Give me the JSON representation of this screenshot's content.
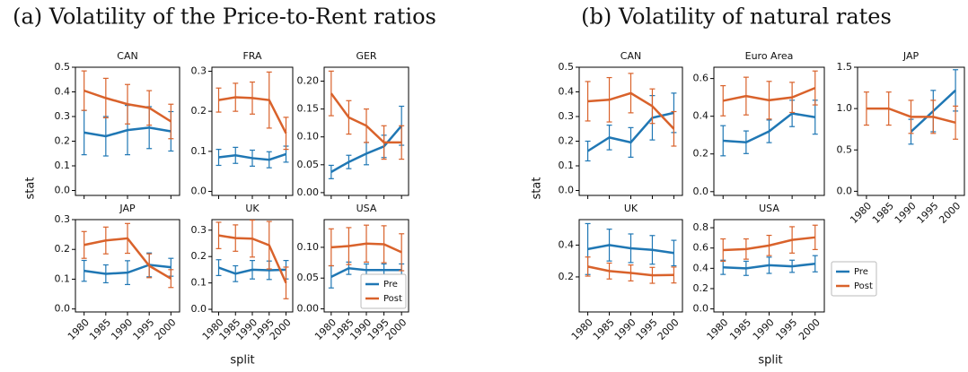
{
  "figures": [
    {
      "title": "(a) Volatility of the Price-to-Rent ratios",
      "y_label": "stat",
      "x_label": "split"
    },
    {
      "title": "(b) Volatility of natural rates",
      "y_label": "stat",
      "x_label": "split"
    }
  ],
  "chart_data": [
    {
      "type": "line",
      "title": "CAN",
      "x": [
        1980,
        1985,
        1990,
        1995,
        2000
      ],
      "xlim": [
        1978,
        2002
      ],
      "xticks": [
        1980,
        1985,
        1990,
        1995,
        2000
      ],
      "ylim": [
        -0.02,
        0.5
      ],
      "yticks": [
        {
          "value": 0,
          "label": "0.0"
        },
        0.1,
        0.2,
        0.3,
        0.4,
        0.5
      ],
      "series": [
        {
          "name": "Pre",
          "color": "#1f77b4",
          "values": [
            0.235,
            0.22,
            0.245,
            0.255,
            0.24
          ],
          "errors": [
            0.09,
            0.08,
            0.1,
            0.085,
            0.08
          ]
        },
        {
          "name": "Post",
          "color": "#d9622b",
          "values": [
            0.405,
            0.375,
            0.35,
            0.335,
            0.28
          ],
          "errors": [
            0.08,
            0.08,
            0.08,
            0.07,
            0.07
          ]
        }
      ]
    },
    {
      "type": "line",
      "title": "FRA",
      "x": [
        1980,
        1985,
        1990,
        1995,
        2000
      ],
      "xlim": [
        1978,
        2002
      ],
      "xticks": [
        1980,
        1985,
        1990,
        1995,
        2000
      ],
      "ylim": [
        -0.01,
        0.31
      ],
      "yticks": [
        {
          "value": 0,
          "label": "0.0"
        },
        0.1,
        0.2,
        0.3
      ],
      "series": [
        {
          "name": "Pre",
          "color": "#1f77b4",
          "values": [
            0.085,
            0.09,
            0.083,
            0.079,
            0.093
          ],
          "errors": [
            0.02,
            0.02,
            0.02,
            0.02,
            0.02
          ]
        },
        {
          "name": "Post",
          "color": "#d9622b",
          "values": [
            0.228,
            0.235,
            0.233,
            0.228,
            0.145
          ],
          "errors": [
            0.03,
            0.035,
            0.04,
            0.07,
            0.04
          ]
        }
      ]
    },
    {
      "type": "line",
      "title": "GER",
      "x": [
        1980,
        1985,
        1990,
        1995,
        2000
      ],
      "xlim": [
        1978,
        2002
      ],
      "xticks": [
        1980,
        1985,
        1990,
        1995,
        2000
      ],
      "ylim": [
        -0.005,
        0.225
      ],
      "yticks": [
        {
          "value": 0,
          "label": "0.00"
        },
        0.05,
        {
          "value": 0.1,
          "label": "0.10"
        },
        0.15,
        {
          "value": 0.2,
          "label": "0.20"
        }
      ],
      "series": [
        {
          "name": "Pre",
          "color": "#1f77b4",
          "values": [
            0.037,
            0.055,
            0.07,
            0.083,
            0.12
          ],
          "errors": [
            0.012,
            0.012,
            0.02,
            0.02,
            0.035
          ]
        },
        {
          "name": "Post",
          "color": "#d9622b",
          "values": [
            0.178,
            0.135,
            0.12,
            0.09,
            0.09
          ],
          "errors": [
            0.04,
            0.03,
            0.03,
            0.03,
            0.03
          ]
        }
      ]
    },
    {
      "type": "line",
      "title": "JAP",
      "x": [
        1980,
        1985,
        1990,
        1995,
        2000
      ],
      "xlim": [
        1978,
        2002
      ],
      "xticks": [
        1980,
        1985,
        1990,
        1995,
        2000
      ],
      "ylim": [
        -0.01,
        0.3
      ],
      "yticks": [
        {
          "value": 0,
          "label": "0.0"
        },
        0.1,
        0.2,
        0.3
      ],
      "series": [
        {
          "name": "Pre",
          "color": "#1f77b4",
          "values": [
            0.128,
            0.118,
            0.122,
            0.148,
            0.14
          ],
          "errors": [
            0.035,
            0.03,
            0.04,
            0.04,
            0.03
          ]
        },
        {
          "name": "Post",
          "color": "#d9622b",
          "values": [
            0.215,
            0.23,
            0.237,
            0.145,
            0.102
          ],
          "errors": [
            0.045,
            0.045,
            0.05,
            0.04,
            0.03
          ]
        }
      ]
    },
    {
      "type": "line",
      "title": "UK",
      "x": [
        1980,
        1985,
        1990,
        1995,
        2000
      ],
      "xlim": [
        1978,
        2002
      ],
      "xticks": [
        1980,
        1985,
        1990,
        1995,
        2000
      ],
      "ylim": [
        -0.01,
        0.34
      ],
      "yticks": [
        {
          "value": 0,
          "label": "0.0"
        },
        0.1,
        0.2,
        0.3
      ],
      "series": [
        {
          "name": "Pre",
          "color": "#1f77b4",
          "values": [
            0.158,
            0.135,
            0.15,
            0.148,
            0.15
          ],
          "errors": [
            0.03,
            0.03,
            0.035,
            0.035,
            0.035
          ]
        },
        {
          "name": "Post",
          "color": "#d9622b",
          "values": [
            0.28,
            0.27,
            0.268,
            0.243,
            0.1
          ],
          "errors": [
            0.05,
            0.05,
            0.07,
            0.09,
            0.06
          ]
        }
      ]
    },
    {
      "type": "line",
      "title": "USA",
      "x": [
        1980,
        1985,
        1990,
        1995,
        2000
      ],
      "xlim": [
        1978,
        2002
      ],
      "xticks": [
        1980,
        1985,
        1990,
        1995,
        2000
      ],
      "ylim": [
        -0.005,
        0.145
      ],
      "yticks": [
        {
          "value": 0,
          "label": "0.00"
        },
        0.05,
        {
          "value": 0.1,
          "label": "0.10"
        }
      ],
      "legend": "lower right",
      "series": [
        {
          "name": "Pre",
          "color": "#1f77b4",
          "values": [
            0.052,
            0.066,
            0.063,
            0.063,
            0.063
          ],
          "errors": [
            0.018,
            0.01,
            0.01,
            0.01,
            0.01
          ]
        },
        {
          "name": "Post",
          "color": "#d9622b",
          "values": [
            0.1,
            0.102,
            0.106,
            0.105,
            0.092
          ],
          "errors": [
            0.03,
            0.03,
            0.03,
            0.03,
            0.03
          ]
        }
      ]
    },
    {
      "type": "line",
      "title": "CAN",
      "x": [
        1980,
        1985,
        1990,
        1995,
        2000
      ],
      "xlim": [
        1978,
        2002
      ],
      "xticks": [
        1980,
        1985,
        1990,
        1995,
        2000
      ],
      "ylim": [
        -0.02,
        0.5
      ],
      "yticks": [
        {
          "value": 0,
          "label": "0.0"
        },
        0.1,
        0.2,
        0.3,
        0.4,
        0.5
      ],
      "series": [
        {
          "name": "Pre",
          "color": "#1f77b4",
          "values": [
            0.16,
            0.215,
            0.195,
            0.295,
            0.315
          ],
          "errors": [
            0.04,
            0.05,
            0.06,
            0.09,
            0.08
          ]
        },
        {
          "name": "Post",
          "color": "#d9622b",
          "values": [
            0.362,
            0.368,
            0.395,
            0.342,
            0.25
          ],
          "errors": [
            0.08,
            0.09,
            0.08,
            0.07,
            0.07
          ]
        }
      ]
    },
    {
      "type": "line",
      "title": "Euro Area",
      "x": [
        1980,
        1985,
        1990,
        1995,
        2000
      ],
      "xlim": [
        1978,
        2002
      ],
      "xticks": [
        1980,
        1985,
        1990,
        1995,
        2000
      ],
      "ylim": [
        -0.02,
        0.66
      ],
      "yticks": [
        {
          "value": 0,
          "label": "0.0"
        },
        0.2,
        0.4,
        0.6
      ],
      "series": [
        {
          "name": "Pre",
          "color": "#1f77b4",
          "values": [
            0.27,
            0.262,
            0.32,
            0.415,
            0.395
          ],
          "errors": [
            0.08,
            0.06,
            0.06,
            0.07,
            0.09
          ]
        },
        {
          "name": "Post",
          "color": "#d9622b",
          "values": [
            0.482,
            0.507,
            0.485,
            0.5,
            0.55
          ],
          "errors": [
            0.08,
            0.1,
            0.1,
            0.08,
            0.09
          ]
        }
      ]
    },
    {
      "type": "line",
      "title": "JAP",
      "x": [
        1980,
        1985,
        1990,
        1995,
        2000
      ],
      "xlim": [
        1978,
        2002
      ],
      "xticks": [
        1980,
        1985,
        1990,
        1995,
        2000
      ],
      "ylim": [
        -0.05,
        1.5
      ],
      "yticks": [
        {
          "value": 0,
          "label": "0.0"
        },
        0.5,
        {
          "value": 1,
          "label": "1.0"
        },
        1.5
      ],
      "series": [
        {
          "name": "Pre",
          "color": "#1f77b4",
          "values": [
            null,
            null,
            0.72,
            0.97,
            1.22
          ],
          "errors": [
            null,
            null,
            0.15,
            0.25,
            0.25
          ]
        },
        {
          "name": "Post",
          "color": "#d9622b",
          "values": [
            1.0,
            1.0,
            0.9,
            0.9,
            0.83
          ],
          "errors": [
            0.2,
            0.2,
            0.2,
            0.2,
            0.2
          ]
        }
      ]
    },
    {
      "type": "line",
      "title": "UK",
      "x": [
        1980,
        1985,
        1990,
        1995,
        2000
      ],
      "xlim": [
        1978,
        2002
      ],
      "xticks": [
        1980,
        1985,
        1990,
        1995,
        2000
      ],
      "ylim": [
        -0.02,
        0.56
      ],
      "yticks": [
        0.2,
        0.4
      ],
      "series": [
        {
          "name": "Pre",
          "color": "#1f77b4",
          "values": [
            0.375,
            0.4,
            0.38,
            0.37,
            0.35
          ],
          "errors": [
            0.16,
            0.1,
            0.09,
            0.09,
            0.08
          ]
        },
        {
          "name": "Post",
          "color": "#d9622b",
          "values": [
            0.265,
            0.237,
            0.225,
            0.21,
            0.212
          ],
          "errors": [
            0.06,
            0.05,
            0.05,
            0.05,
            0.05
          ]
        }
      ]
    },
    {
      "type": "line",
      "title": "USA",
      "x": [
        1980,
        1985,
        1990,
        1995,
        2000
      ],
      "xlim": [
        1978,
        2002
      ],
      "xticks": [
        1980,
        1985,
        1990,
        1995,
        2000
      ],
      "ylim": [
        -0.03,
        0.88
      ],
      "yticks": [
        {
          "value": 0,
          "label": "0.0"
        },
        0.2,
        0.4,
        0.6,
        0.8
      ],
      "legend": "outside right",
      "series": [
        {
          "name": "Pre",
          "color": "#1f77b4",
          "values": [
            0.41,
            0.4,
            0.43,
            0.42,
            0.445
          ],
          "errors": [
            0.07,
            0.07,
            0.08,
            0.06,
            0.08
          ]
        },
        {
          "name": "Post",
          "color": "#d9622b",
          "values": [
            0.58,
            0.59,
            0.625,
            0.68,
            0.705
          ],
          "errors": [
            0.11,
            0.1,
            0.1,
            0.13,
            0.12
          ]
        }
      ]
    }
  ]
}
